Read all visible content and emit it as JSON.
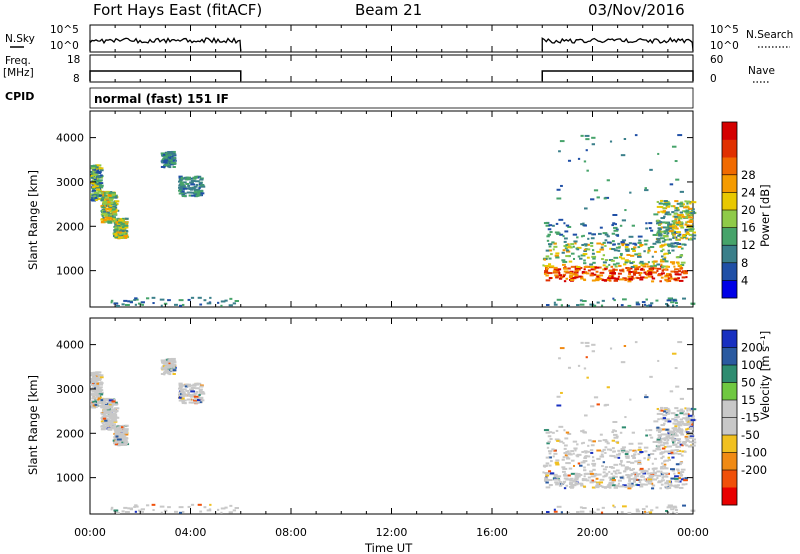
{
  "header": {
    "station": "Fort Hays East (fitACF)",
    "beam": "Beam 21",
    "date": "03/Nov/2016"
  },
  "labels": {
    "nsky": "N.Sky",
    "nsearch": "N.Search",
    "freq": "Freq.",
    "freq_unit": "[MHz]",
    "nave": "Nave",
    "cpid": "CPID",
    "cpid_value": "normal (fast) 151 IF",
    "slant_range": "Slant Range [km]",
    "time_ut": "Time UT",
    "power_label": "Power [dB]",
    "velocity_label": "Velocity [m s⁻¹]"
  },
  "colors": {
    "power": [
      "#0000e6",
      "#1f4fa6",
      "#3a7f8a",
      "#46a36a",
      "#8fca48",
      "#e8c800",
      "#f59b00",
      "#f06a00",
      "#e03000",
      "#d40000"
    ],
    "velocity": [
      "#e80000",
      "#f0500a",
      "#f08a14",
      "#f0c020",
      "#c8c8c8",
      "#c8c8c8",
      "#6fc840",
      "#2e8c70",
      "#2a5aa0",
      "#1830c0"
    ]
  },
  "chart_data": {
    "type": "heatmap",
    "x": {
      "ticks": [
        "00:00",
        "04:00",
        "08:00",
        "12:00",
        "16:00",
        "20:00",
        "00:00"
      ],
      "range_hours": [
        0,
        24
      ],
      "label": "Time UT"
    },
    "noise_panel": {
      "left_ticks": [
        "10^5",
        "10^0"
      ],
      "right_ticks": [
        "10^5",
        "10^0"
      ],
      "data_intervals_hours": [
        [
          0,
          6
        ],
        [
          18,
          24
        ]
      ]
    },
    "freq_panel": {
      "left_ticks": [
        "18",
        "8"
      ],
      "right_ticks": [
        "60",
        "0"
      ],
      "data_intervals_hours": [
        [
          0,
          6
        ],
        [
          18,
          24
        ]
      ]
    },
    "power_panel": {
      "ylabel": "Slant Range [km]",
      "y_ticks": [
        "1000",
        "2000",
        "3000",
        "4000"
      ],
      "ylim": [
        180,
        4600
      ],
      "colorbar_ticks": [
        "4",
        "8",
        "12",
        "16",
        "20",
        "24",
        "28"
      ],
      "colorbar_label": "Power [dB]"
    },
    "velocity_panel": {
      "ylabel": "Slant Range [km]",
      "y_ticks": [
        "1000",
        "2000",
        "3000",
        "4000"
      ],
      "ylim": [
        180,
        4600
      ],
      "colorbar_ticks": [
        "200",
        "100",
        "50",
        "15",
        "-15",
        "-50",
        "-100",
        "-200"
      ],
      "colorbar_label": "Velocity [m s⁻¹]"
    },
    "scatter_regions": [
      {
        "t": [
          0.0,
          0.4
        ],
        "r": [
          2600,
          3400
        ],
        "kind": "mixed"
      },
      {
        "t": [
          0.4,
          1.0
        ],
        "r": [
          2100,
          2800
        ],
        "kind": "mid"
      },
      {
        "t": [
          0.9,
          1.4
        ],
        "r": [
          1750,
          2200
        ],
        "kind": "mid"
      },
      {
        "t": [
          2.8,
          3.3
        ],
        "r": [
          3350,
          3700
        ],
        "kind": "weak"
      },
      {
        "t": [
          3.5,
          4.4
        ],
        "r": [
          2700,
          3150
        ],
        "kind": "weak"
      },
      {
        "t": [
          0.7,
          5.8
        ],
        "r": [
          220,
          420
        ],
        "kind": "sparse"
      },
      {
        "t": [
          18.0,
          23.7
        ],
        "r": [
          780,
          1120
        ],
        "kind": "strong"
      },
      {
        "t": [
          18.0,
          23.7
        ],
        "r": [
          1100,
          1650
        ],
        "kind": "mid"
      },
      {
        "t": [
          18.0,
          23.7
        ],
        "r": [
          1600,
          2100
        ],
        "kind": "weak"
      },
      {
        "t": [
          22.5,
          24.0
        ],
        "r": [
          1700,
          2600
        ],
        "kind": "mid"
      },
      {
        "t": [
          18.5,
          23.5
        ],
        "r": [
          2100,
          4300
        ],
        "kind": "sparse"
      },
      {
        "t": [
          18.0,
          24.0
        ],
        "r": [
          220,
          400
        ],
        "kind": "sparse"
      }
    ]
  }
}
